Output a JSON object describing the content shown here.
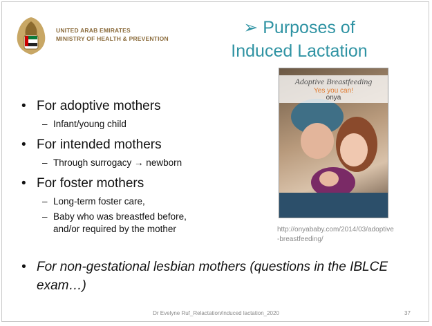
{
  "header": {
    "org_line1": "UNITED ARAB EMIRATES",
    "org_line2": "MINISTRY OF HEALTH & PREVENTION",
    "title_line1": "➢ Purposes of",
    "title_line2": "Induced Lactation"
  },
  "bullets": [
    {
      "marker": "•",
      "text": "For adoptive mothers",
      "subs": [
        {
          "marker": "–",
          "text": "Infant/young child"
        }
      ]
    },
    {
      "marker": "•",
      "text": "For intended mothers",
      "subs": [
        {
          "marker": "–",
          "text": "Through surrogacy → newborn"
        }
      ]
    },
    {
      "marker": "•",
      "text": "For foster mothers",
      "subs": [
        {
          "marker": "–",
          "text": "Long-term foster care,"
        },
        {
          "marker": "–",
          "text": "Baby who was breastfed before, and/or required by the mother"
        }
      ]
    }
  ],
  "last_bullet": {
    "marker": "•",
    "text": "For non-gestational lesbian mothers (questions in the IBLCE exam…)"
  },
  "image": {
    "banner_title": "Adoptive Breastfeeding",
    "banner_subtitle": "Yes you can!",
    "banner_brand": "onya",
    "caption": "http://onyababy.com/2014/03/adoptive-breastfeeding/"
  },
  "footer": {
    "text": "Dr Evelyne Ruf_Relactation/induced lactation_2020",
    "page": "37"
  }
}
